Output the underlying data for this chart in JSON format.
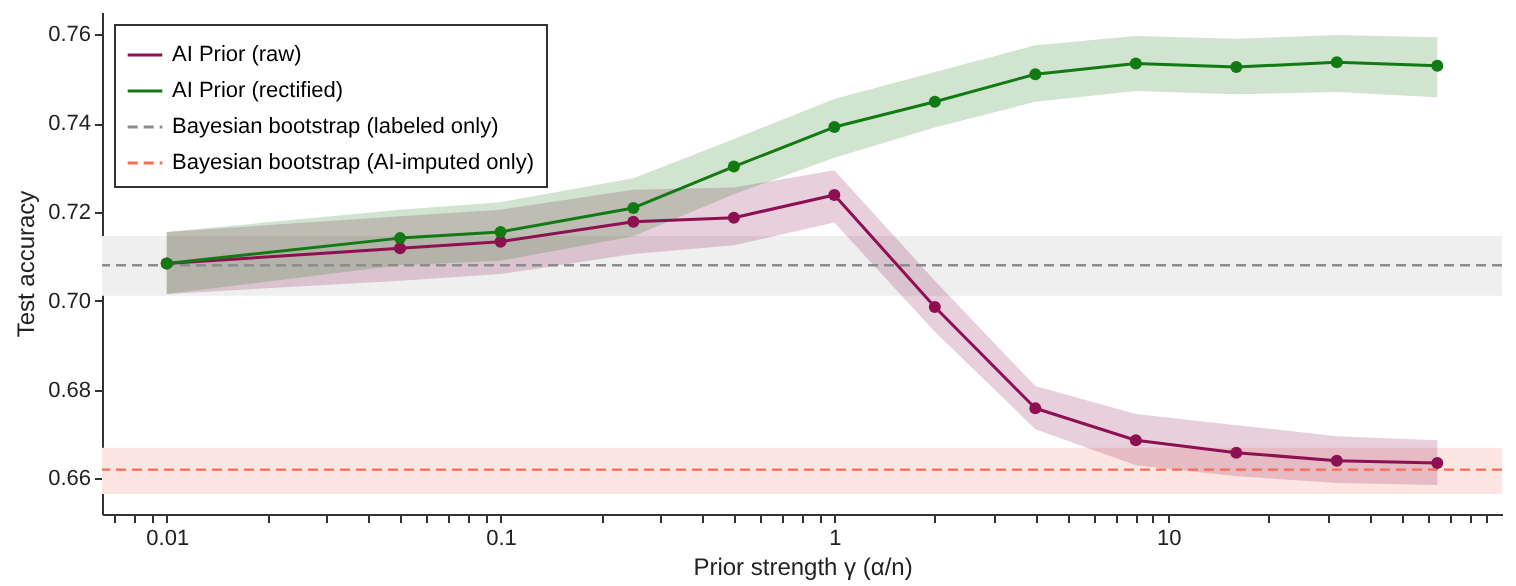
{
  "chart_data": {
    "type": "line",
    "xlabel": "Prior strength γ  (α/n)",
    "ylabel": "Test accuracy",
    "log": "x",
    "grid": false,
    "legend": "top left",
    "marker": "circle",
    "line_style": "solid",
    "xlim": [
      0.0064,
      100
    ],
    "ylim": [
      0.652,
      0.765
    ],
    "xticks": [
      {
        "value": 0.007,
        "label": null
      },
      {
        "value": 0.008,
        "label": null
      },
      {
        "value": 0.009,
        "label": null
      },
      0.01,
      {
        "value": 0.02,
        "label": null
      },
      {
        "value": 0.03,
        "label": null
      },
      {
        "value": 0.04,
        "label": null
      },
      {
        "value": 0.05,
        "label": null
      },
      {
        "value": 0.06,
        "label": null
      },
      {
        "value": 0.07,
        "label": null
      },
      {
        "value": 0.08,
        "label": null
      },
      {
        "value": 0.09,
        "label": null
      },
      0.1,
      {
        "value": 0.2,
        "label": null
      },
      {
        "value": 0.3,
        "label": null
      },
      {
        "value": 0.4,
        "label": null
      },
      {
        "value": 0.5,
        "label": null
      },
      {
        "value": 0.6,
        "label": null
      },
      {
        "value": 0.7,
        "label": null
      },
      {
        "value": 0.8,
        "label": null
      },
      {
        "value": 0.9,
        "label": null
      },
      1,
      {
        "value": 2,
        "label": null
      },
      {
        "value": 3,
        "label": null
      },
      {
        "value": 4,
        "label": null
      },
      {
        "value": 5,
        "label": null
      },
      {
        "value": 6,
        "label": null
      },
      {
        "value": 7,
        "label": null
      },
      {
        "value": 8,
        "label": null
      },
      {
        "value": 9,
        "label": null
      },
      10,
      {
        "value": 20,
        "label": null
      },
      {
        "value": 30,
        "label": null
      },
      {
        "value": 40,
        "label": null
      },
      {
        "value": 50,
        "label": null
      },
      {
        "value": 60,
        "label": null
      },
      {
        "value": 70,
        "label": null
      },
      {
        "value": 80,
        "label": null
      },
      {
        "value": 90,
        "label": null
      }
    ],
    "yticks": [
      0.66,
      0.68,
      {
        "value": 0.7,
        "label": "0.70"
      },
      0.72,
      0.74,
      0.76
    ],
    "x": [
      0.01,
      0.05,
      0.1,
      0.25,
      0.5,
      1,
      2,
      4,
      8,
      16,
      32,
      64
    ],
    "series": [
      {
        "name": "AI Prior (raw)",
        "color": "#8e0f52",
        "values": [
          0.7084,
          0.7118,
          0.7133,
          0.7178,
          0.7187,
          0.7238,
          0.6986,
          0.6758,
          0.6686,
          0.6658,
          0.664,
          0.6635
        ],
        "lower": [
          0.7015,
          0.7045,
          0.706,
          0.7105,
          0.7125,
          0.7176,
          0.693,
          0.6711,
          0.663,
          0.6605,
          0.659,
          0.6585
        ],
        "upper": [
          0.7155,
          0.719,
          0.7205,
          0.725,
          0.7255,
          0.7294,
          0.7045,
          0.6808,
          0.6745,
          0.672,
          0.6695,
          0.6686
        ]
      },
      {
        "name": "AI Prior (rectified)",
        "color": "#127a12",
        "values": [
          0.7084,
          0.7141,
          0.7155,
          0.7209,
          0.7302,
          0.7391,
          0.7448,
          0.751,
          0.7534,
          0.7526,
          0.7537,
          0.7529
        ],
        "lower": [
          0.7015,
          0.708,
          0.709,
          0.7145,
          0.724,
          0.7322,
          0.739,
          0.7448,
          0.7472,
          0.7465,
          0.747,
          0.7458
        ],
        "upper": [
          0.7155,
          0.7205,
          0.7222,
          0.7276,
          0.7364,
          0.7454,
          0.7515,
          0.7575,
          0.7596,
          0.759,
          0.7598,
          0.7593
        ]
      }
    ],
    "ref_lines": [
      {
        "axis": "y",
        "value": 0.708,
        "label": "Bayesian bootstrap (labeled only)",
        "color": "#8c8c8c",
        "line_style": "dashed"
      },
      {
        "axis": "y",
        "value": 0.662,
        "label": "Bayesian bootstrap (AI-imputed only)",
        "color": "#fa6e4f",
        "line_style": "dashed"
      }
    ],
    "bands": [
      {
        "axis": "y",
        "from": 0.7011,
        "to": 0.7146,
        "color": "#efefef"
      },
      {
        "axis": "y",
        "from": 0.6565,
        "to": 0.6669,
        "color": "#fde6e2"
      }
    ]
  }
}
